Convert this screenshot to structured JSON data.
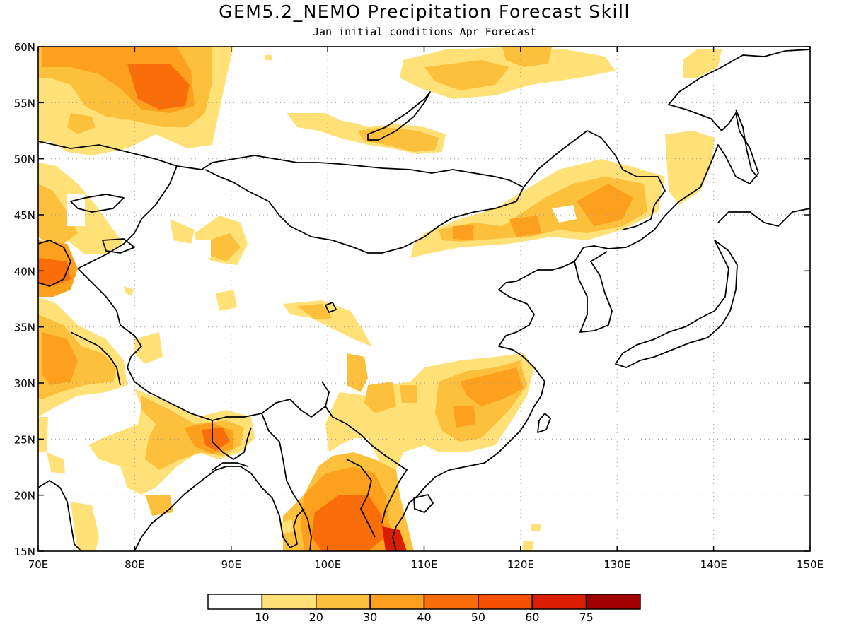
{
  "title": "GEM5.2_NEMO Precipitation Forecast Skill",
  "subtitle": "Jan initial conditions  Apr Forecast",
  "map": {
    "lon_range": [
      70,
      150
    ],
    "lat_range": [
      15,
      60
    ],
    "lon_ticks": [
      "70E",
      "80E",
      "90E",
      "100E",
      "110E",
      "120E",
      "130E",
      "140E",
      "150E"
    ],
    "lat_ticks": [
      "60N",
      "55N",
      "50N",
      "45N",
      "40N",
      "35N",
      "30N",
      "25N",
      "20N",
      "15N"
    ],
    "gridlines": "dotted"
  },
  "colorbar": {
    "colors": [
      "#ffffff",
      "#ffe178",
      "#fdc03c",
      "#fca01e",
      "#fa6e0a",
      "#f55000",
      "#dc1e00",
      "#a00000"
    ],
    "labels": [
      "10",
      "20",
      "30",
      "40",
      "50",
      "60",
      "75"
    ]
  }
}
